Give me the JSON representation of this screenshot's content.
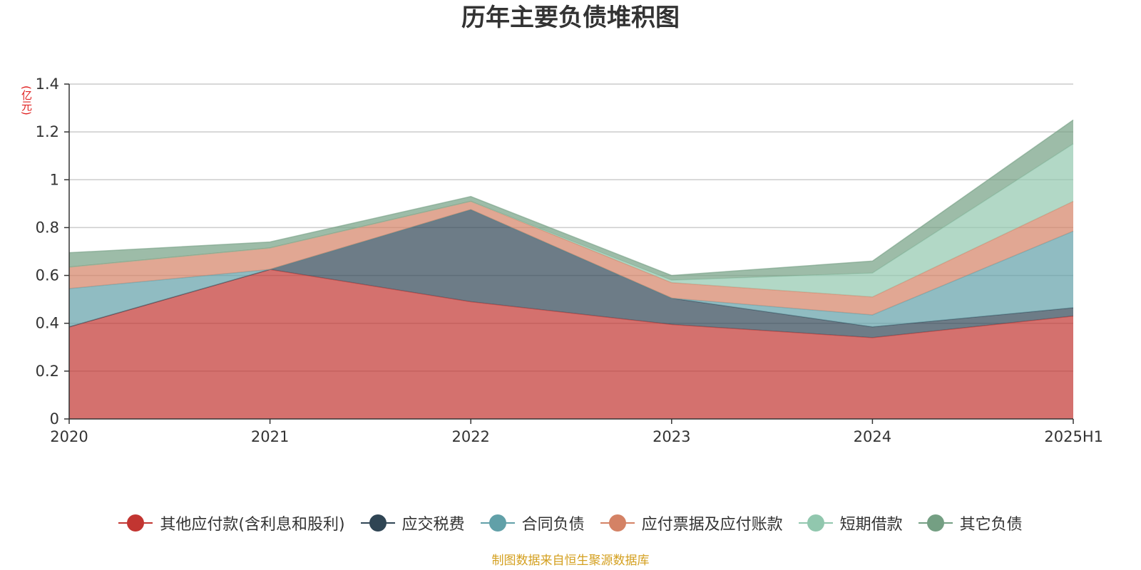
{
  "chart_data": {
    "type": "area",
    "stacked": true,
    "title": "历年主要负债堆积图",
    "ylabel": "(亿元)",
    "xlabel": "",
    "categories": [
      "2020",
      "2021",
      "2022",
      "2023",
      "2024",
      "2025H1"
    ],
    "ylim": [
      0,
      1.4
    ],
    "yticks": [
      0,
      0.2,
      0.4,
      0.6,
      0.8,
      1,
      1.2,
      1.4
    ],
    "ytick_labels": [
      "0",
      "0.2",
      "0.4",
      "0.6",
      "0.8",
      "1",
      "1.2",
      "1.4"
    ],
    "grid": true,
    "legend_position": "bottom",
    "series": [
      {
        "name": "其他应付款(含利息和股利)",
        "color": "#c23531",
        "values": [
          0.385,
          0.625,
          0.49,
          0.395,
          0.34,
          0.43
        ]
      },
      {
        "name": "应交税费",
        "color": "#2f4554",
        "values": [
          0.0,
          0.0,
          0.385,
          0.11,
          0.045,
          0.035
        ]
      },
      {
        "name": "合同负债",
        "color": "#61a0a8",
        "values": [
          0.16,
          0.0,
          0.0,
          0.0,
          0.05,
          0.32
        ]
      },
      {
        "name": "应付票据及应付账款",
        "color": "#d48265",
        "values": [
          0.09,
          0.09,
          0.035,
          0.065,
          0.075,
          0.125
        ]
      },
      {
        "name": "短期借款",
        "color": "#91c7ae",
        "values": [
          0.0,
          0.0,
          0.0,
          0.01,
          0.1,
          0.24
        ]
      },
      {
        "name": "其它负债",
        "color": "#749f83",
        "values": [
          0.06,
          0.025,
          0.02,
          0.02,
          0.05,
          0.1
        ]
      }
    ]
  },
  "source_note": "制图数据来自恒生聚源数据库"
}
